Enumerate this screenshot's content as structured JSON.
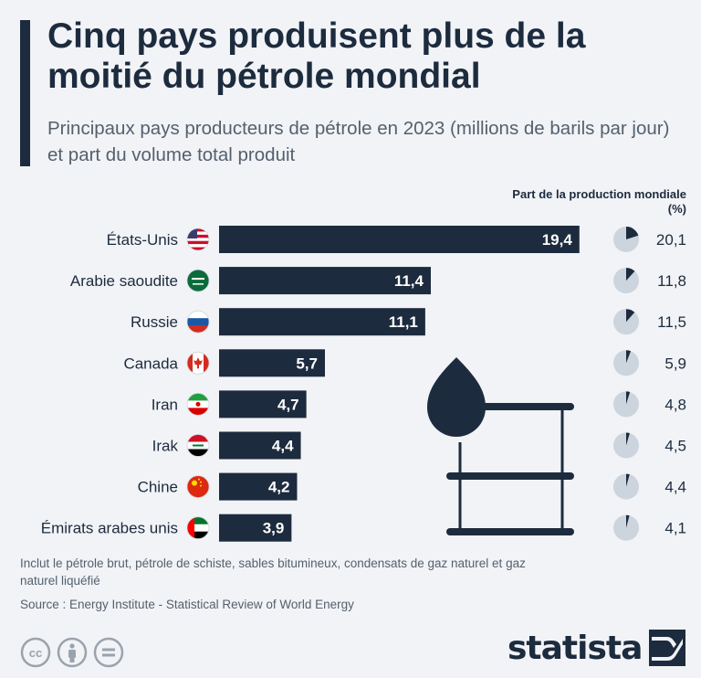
{
  "header": {
    "title": "Cinq pays produisent plus de la moitié du pétrole mondial",
    "subtitle": "Principaux pays producteurs de pétrole en 2023 (millions de barils par jour) et part du volume total produit"
  },
  "share_header": "Part de la production mondiale (%)",
  "chart_data": {
    "type": "bar",
    "orientation": "horizontal",
    "categories": [
      "États-Unis",
      "Arabie saoudite",
      "Russie",
      "Canada",
      "Iran",
      "Irak",
      "Chine",
      "Émirats arabes unis"
    ],
    "flags": [
      "us-flag-icon",
      "saudi-flag-icon",
      "russia-flag-icon",
      "canada-flag-icon",
      "iran-flag-icon",
      "iraq-flag-icon",
      "china-flag-icon",
      "uae-flag-icon"
    ],
    "values": [
      19.4,
      11.4,
      11.1,
      5.7,
      4.7,
      4.4,
      4.2,
      3.9
    ],
    "value_labels": [
      "19,4",
      "11,4",
      "11,1",
      "5,7",
      "4,7",
      "4,4",
      "4,2",
      "3,9"
    ],
    "share_percent": [
      20.1,
      11.8,
      11.5,
      5.9,
      4.8,
      4.5,
      4.4,
      4.1
    ],
    "share_labels": [
      "20,1",
      "11,8",
      "11,5",
      "5,9",
      "4,8",
      "4,5",
      "4,4",
      "4,1"
    ],
    "colors": {
      "bar": "#1d2b3e",
      "pie_bg": "#ccd4dd",
      "pie_fill": "#1d2b3e"
    },
    "decoration": "oil-drop-barrel-icon"
  },
  "footer": {
    "note": "Inclut le pétrole brut, pétrole de schiste, sables bitumineux, condensats de gaz naturel et gaz naturel liquéfié",
    "source": "Source : Energy Institute - Statistical Review of World Energy",
    "brand": "statista"
  }
}
